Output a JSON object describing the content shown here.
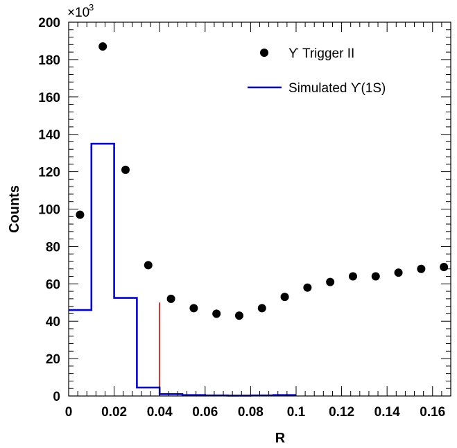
{
  "chart_data": {
    "type": "scatter",
    "xlabel": "R",
    "ylabel": "Counts",
    "y_multiplier_label": "×10",
    "y_multiplier_exponent": "3",
    "xlim": [
      0,
      0.168
    ],
    "ylim": [
      0,
      200
    ],
    "x_ticks": [
      0,
      0.02,
      0.04,
      0.06,
      0.08,
      0.1,
      0.12,
      0.14,
      0.16
    ],
    "x_tick_labels": [
      "0",
      "0.02",
      "0.04",
      "0.06",
      "0.08",
      "0.1",
      "0.12",
      "0.14",
      "0.16"
    ],
    "y_ticks": [
      0,
      20,
      40,
      60,
      80,
      100,
      120,
      140,
      160,
      180,
      200
    ],
    "y_tick_labels": [
      "0",
      "20",
      "40",
      "60",
      "80",
      "100",
      "120",
      "140",
      "160",
      "180",
      "200"
    ],
    "grid": false,
    "legend_position": "top-right",
    "series": [
      {
        "name": "ϒ Trigger II",
        "kind": "points",
        "color": "#000000",
        "x": [
          0.005,
          0.015,
          0.025,
          0.035,
          0.045,
          0.055,
          0.065,
          0.075,
          0.085,
          0.095,
          0.105,
          0.115,
          0.125,
          0.135,
          0.145,
          0.155,
          0.165
        ],
        "y": [
          97,
          187,
          121,
          70,
          52,
          47,
          44,
          43,
          47,
          53,
          58,
          61,
          64,
          64,
          66,
          68,
          69
        ]
      },
      {
        "name": "Simulated ϒ(1S)",
        "kind": "step",
        "color": "#0000dd",
        "bin_edges": [
          0,
          0.01,
          0.02,
          0.03,
          0.04,
          0.05,
          0.06,
          0.07,
          0.08,
          0.09,
          0.1
        ],
        "y": [
          46,
          135,
          52.5,
          4.5,
          1,
          0.5,
          0.3,
          0.2,
          0.3,
          0.5
        ]
      }
    ],
    "annotations": [
      {
        "kind": "vertical-line",
        "color": "#dd0000",
        "x": 0.04,
        "y_from": 0,
        "y_to": 50
      }
    ]
  }
}
